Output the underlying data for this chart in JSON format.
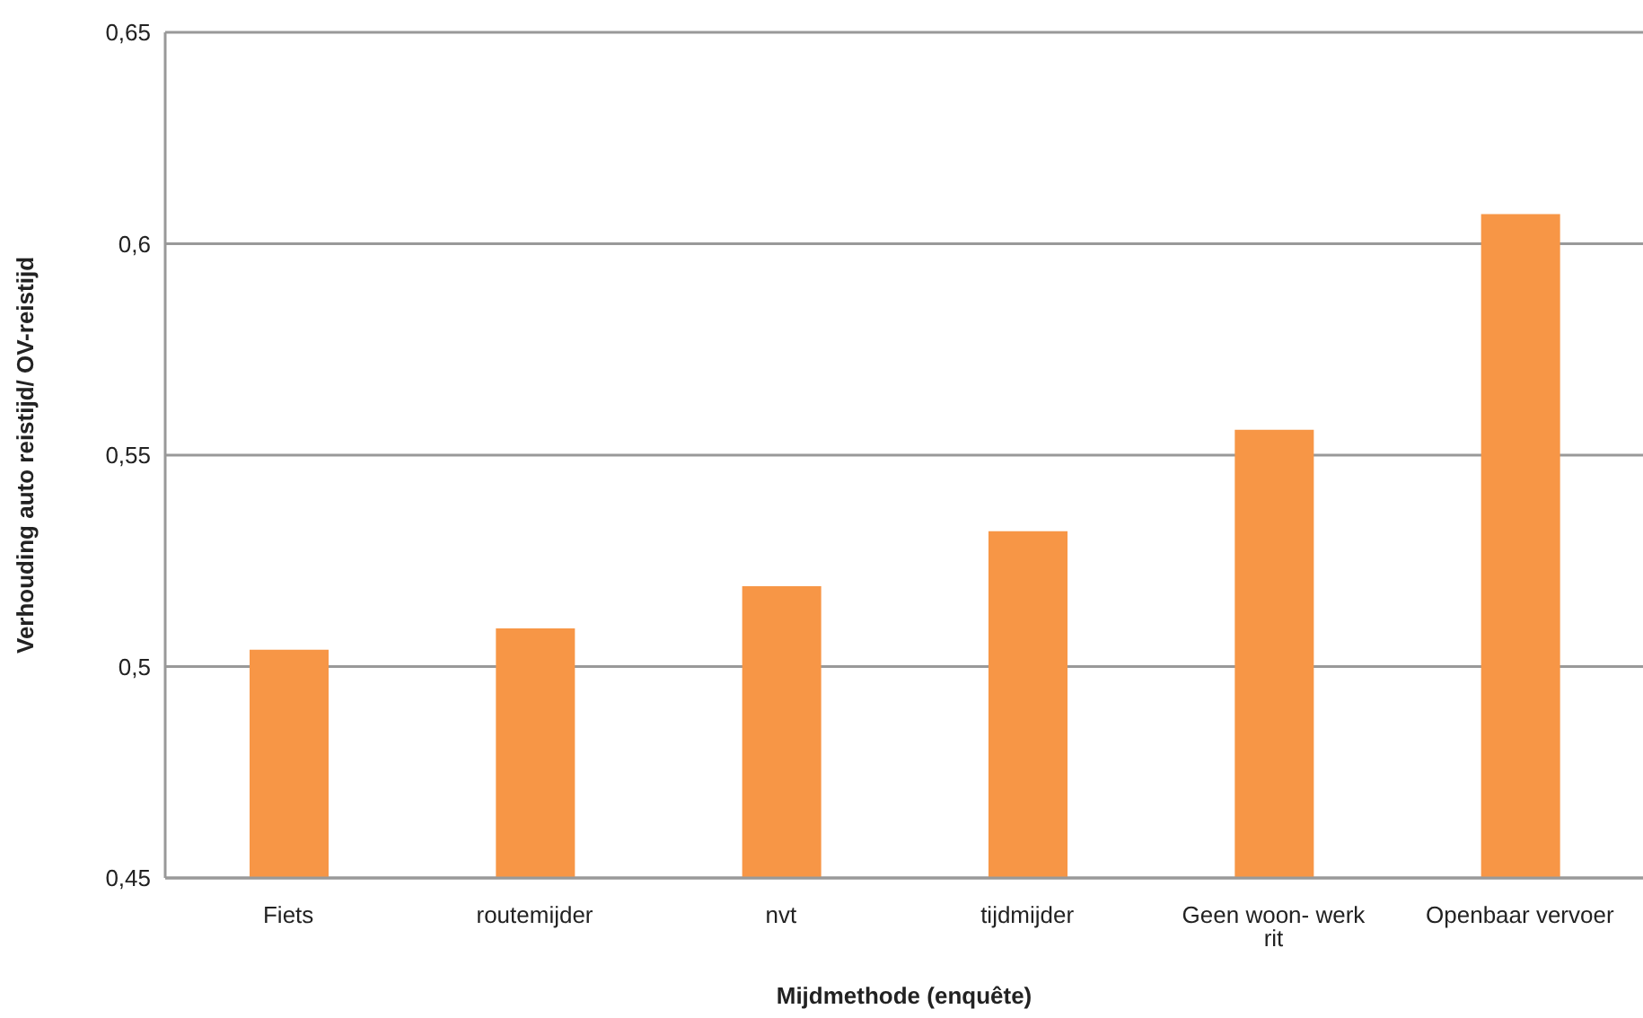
{
  "chart_data": {
    "type": "bar",
    "xlabel": "Mijdmethode (enquête)",
    "ylabel": "Verhouding auto reistijd/ OV-reistijd",
    "categories": [
      "Fiets",
      "routemijder",
      "nvt",
      "tijdmijder",
      "Geen woon- werk rit",
      "Openbaar vervoer"
    ],
    "values": [
      0.504,
      0.509,
      0.519,
      0.532,
      0.556,
      0.607
    ],
    "color": "#f79646",
    "ylim": [
      0.45,
      0.65
    ],
    "yticks": [
      {
        "value": 0.45,
        "label": "0,45"
      },
      {
        "value": 0.5,
        "label": "0,5"
      },
      {
        "value": 0.55,
        "label": "0,55"
      },
      {
        "value": 0.6,
        "label": "0,6"
      },
      {
        "value": 0.65,
        "label": "0,65"
      }
    ],
    "grid": "y"
  }
}
